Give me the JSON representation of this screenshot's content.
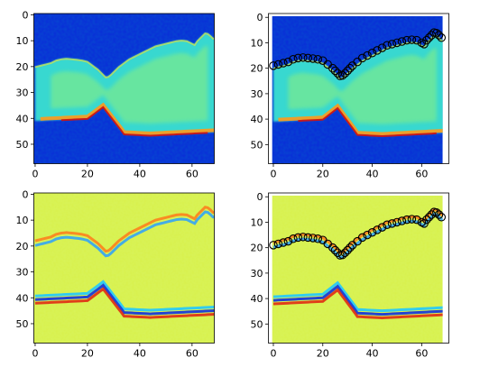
{
  "figure": {
    "layout": "2x2 grid of image panels",
    "colormap": "jet",
    "marker_color": "#000000"
  },
  "chart_data": [
    {
      "type": "heatmap",
      "panel": "top-left",
      "content": "jet-colored intensity image",
      "xlim": [
        -0.5,
        68.5
      ],
      "ylim": [
        57.5,
        -0.5
      ],
      "x_ticks": [
        "0",
        "20",
        "40",
        "60"
      ],
      "y_ticks": [
        "0",
        "10",
        "20",
        "30",
        "40",
        "50"
      ],
      "grid": false,
      "markers": false
    },
    {
      "type": "heatmap",
      "panel": "top-right",
      "content": "same intensity image with picked boundary overlay",
      "xlim": [
        -2,
        71
      ],
      "ylim": [
        57.5,
        -1.5
      ],
      "x_ticks": [
        "0",
        "20",
        "40",
        "60"
      ],
      "y_ticks": [
        "0",
        "10",
        "20",
        "30",
        "40",
        "50"
      ],
      "grid": false,
      "markers": true
    },
    {
      "type": "heatmap",
      "panel": "bottom-left",
      "content": "jet-colored gradient image",
      "xlim": [
        -0.5,
        68.5
      ],
      "ylim": [
        57.5,
        -0.5
      ],
      "x_ticks": [
        "0",
        "20",
        "40",
        "60"
      ],
      "y_ticks": [
        "0",
        "10",
        "20",
        "30",
        "40",
        "50"
      ],
      "grid": false,
      "markers": false
    },
    {
      "type": "heatmap",
      "panel": "bottom-right",
      "content": "same gradient image with picked boundary overlay",
      "xlim": [
        -2,
        71
      ],
      "ylim": [
        57.5,
        -1.5
      ],
      "x_ticks": [
        "0",
        "20",
        "40",
        "60"
      ],
      "y_ticks": [
        "0",
        "10",
        "20",
        "30",
        "40",
        "50"
      ],
      "grid": false,
      "markers": true
    }
  ],
  "boundary_points": {
    "type": "scatter",
    "marker": "open circle",
    "x": [
      0,
      2,
      4,
      6,
      8,
      10,
      12,
      14,
      16,
      18,
      20,
      22,
      24,
      25,
      26,
      27,
      28,
      29,
      30,
      31,
      32,
      34,
      36,
      38,
      40,
      42,
      44,
      46,
      48,
      50,
      52,
      54,
      56,
      58,
      60,
      61,
      62,
      63,
      64,
      65,
      66,
      67,
      68
    ],
    "y": [
      19,
      18.5,
      18,
      17.5,
      16.5,
      16,
      15.8,
      16,
      16.2,
      16.5,
      17,
      18.5,
      20,
      21,
      22,
      23,
      22.8,
      22,
      21,
      20,
      19,
      17.5,
      16,
      15,
      14,
      13,
      12,
      11,
      10.5,
      10,
      9.5,
      9,
      8.8,
      9,
      10,
      10.5,
      9,
      8,
      7,
      6,
      6.2,
      7,
      8
    ]
  }
}
